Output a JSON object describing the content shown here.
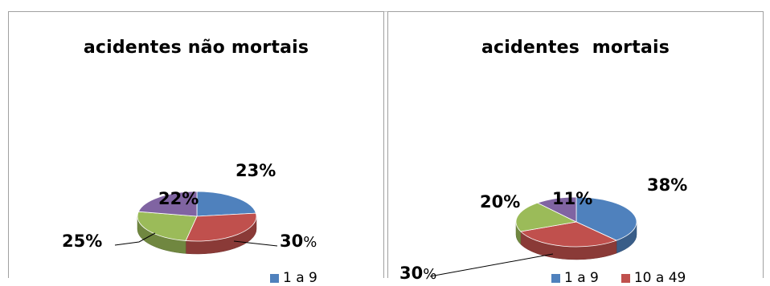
{
  "colors": {
    "blue": "#4f81bd",
    "red": "#c0504d",
    "green": "#9bbb59",
    "purple": "#8064a2"
  },
  "chart_data": [
    {
      "type": "pie",
      "title": "acidentes não mortais",
      "slices": [
        {
          "color": "blue",
          "value": 23,
          "label": "23%"
        },
        {
          "color": "red",
          "value": 30,
          "label": "30%"
        },
        {
          "color": "green",
          "value": 25,
          "label": "25%"
        },
        {
          "color": "purple",
          "value": 22,
          "label": "22%"
        }
      ],
      "legend": [
        {
          "label": "1 a 9",
          "color": "blue"
        }
      ],
      "legend_position": "bottom"
    },
    {
      "type": "pie",
      "title": "acidentes  mortais",
      "slices": [
        {
          "color": "blue",
          "value": 38,
          "label": "38%"
        },
        {
          "color": "red",
          "value": 30,
          "label": "30%"
        },
        {
          "color": "green",
          "value": 20,
          "label": "20%"
        },
        {
          "color": "purple",
          "value": 11,
          "label": "11%"
        }
      ],
      "legend": [
        {
          "label": "1 a 9",
          "color": "blue"
        },
        {
          "label": "10 a 49",
          "color": "red"
        }
      ],
      "legend_position": "bottom"
    }
  ]
}
